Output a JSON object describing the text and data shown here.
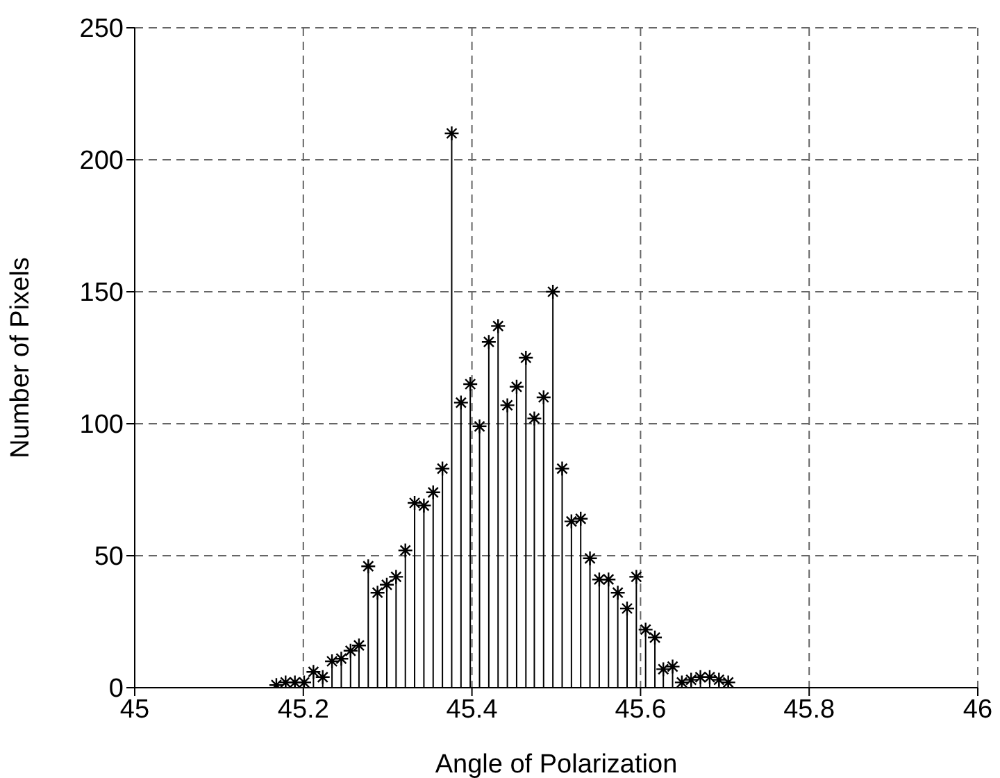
{
  "chart_data": {
    "type": "lollipop",
    "xlabel": "Angle of Polarization",
    "ylabel": "Number of Pixels",
    "marker": "cross",
    "color": "#000000",
    "grid": true,
    "x": [
      45.168,
      45.179,
      45.19,
      45.201,
      45.212,
      45.223,
      45.234,
      45.245,
      45.256,
      45.266,
      45.277,
      45.288,
      45.299,
      45.31,
      45.321,
      45.332,
      45.343,
      45.354,
      45.365,
      45.376,
      45.387,
      45.398,
      45.409,
      45.42,
      45.431,
      45.442,
      45.453,
      45.464,
      45.474,
      45.485,
      45.496,
      45.507,
      45.518,
      45.529,
      45.54,
      45.551,
      45.562,
      45.573,
      45.584,
      45.595,
      45.606,
      45.617,
      45.627,
      45.638,
      45.649,
      45.66,
      45.671,
      45.682,
      45.693,
      45.704
    ],
    "values": [
      1,
      2,
      2,
      2,
      6,
      4,
      10,
      11,
      14,
      16,
      46,
      36,
      39,
      42,
      52,
      70,
      69,
      74,
      83,
      210,
      108,
      115,
      99,
      131,
      137,
      107,
      114,
      125,
      102,
      110,
      150,
      83,
      63,
      64,
      49,
      41,
      41,
      36,
      30,
      42,
      22,
      19,
      7,
      8,
      2,
      3,
      4,
      4,
      3,
      2
    ],
    "xlim": [
      45,
      46
    ],
    "xticks": [
      45,
      45.2,
      45.4,
      45.6,
      45.8,
      46
    ],
    "ylim": [
      0,
      250
    ],
    "yticks": [
      0,
      50,
      100,
      150,
      200,
      250
    ]
  }
}
